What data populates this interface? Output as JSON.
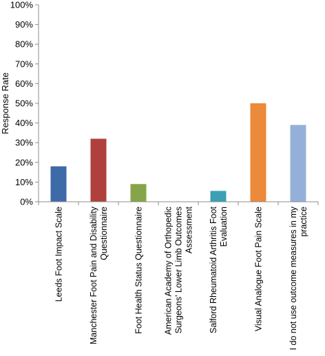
{
  "chart_data": {
    "type": "bar",
    "title": "",
    "xlabel": "",
    "ylabel": "Response Rate",
    "ylim": [
      0,
      100
    ],
    "yticks": [
      "0%",
      "10%",
      "20%",
      "30%",
      "40%",
      "50%",
      "60%",
      "70%",
      "80%",
      "90%",
      "100%"
    ],
    "grid": false,
    "legend": "none",
    "categories": [
      [
        "Leeds Foot Impact Scale"
      ],
      [
        "Manchester Foot Pain and Disability",
        "Questionnaire"
      ],
      [
        "Foot Health Status Questionnaire"
      ],
      [
        "American Academy of Orthopedic",
        "Surgeons' Lower Limb Outcomes",
        "Assessment"
      ],
      [
        "Salford Rheumatoid Arthritis Foot",
        "Evaluation"
      ],
      [
        "Visual Analogue Foot Pain Scale"
      ],
      [
        "I do not use outcome measures in my",
        "practice"
      ]
    ],
    "values": [
      18,
      32,
      9,
      0,
      5.5,
      50,
      39
    ],
    "colors": [
      "#3e6aa8",
      "#b0403e",
      "#86a54a",
      "#6f5591",
      "#3c9fb5",
      "#eb8a3a",
      "#94b0d8"
    ]
  }
}
